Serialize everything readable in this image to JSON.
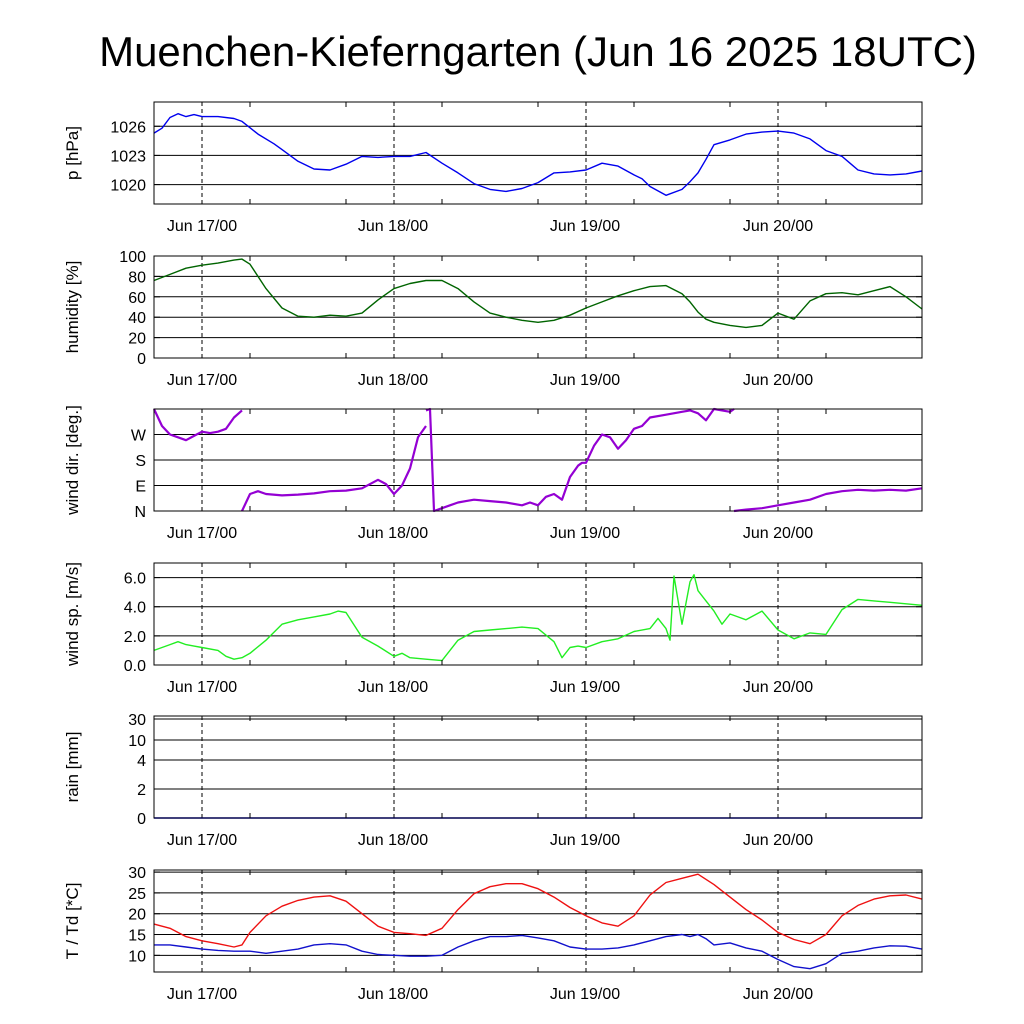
{
  "title": "Muenchen-Kieferngarten (Jun 16 2025 18UTC)",
  "colors": {
    "pressure": "#0000ee",
    "humidity": "#006400",
    "wind_dir": "#9400d3",
    "wind_speed": "#22ee22",
    "temperature": "#ee1111",
    "dewpoint": "#1111cc"
  },
  "chart_data": [
    {
      "type": "line",
      "ylabel": "p [hPa]",
      "x_ticks": [
        "Jun 17/00",
        "Jun 18/00",
        "Jun 19/00",
        "Jun 20/00"
      ],
      "y_ticks": [
        "1026",
        "1023",
        "1020"
      ],
      "y_tick_values": [
        1026,
        1023,
        1020
      ],
      "ylim": [
        1018,
        1028.5
      ],
      "xlim_hours": [
        -6,
        90
      ],
      "grid": true,
      "series": [
        {
          "color_key": "pressure",
          "x": [
            -6,
            -5,
            -4,
            -3,
            -2,
            -1,
            0,
            2,
            4,
            5,
            7,
            9,
            10,
            12,
            14,
            16,
            18,
            20,
            22,
            24,
            26,
            28,
            30,
            32,
            34,
            36,
            38,
            40,
            42,
            44,
            46,
            48,
            50,
            52,
            54,
            55,
            56,
            58,
            60,
            61,
            62,
            63,
            64,
            66,
            68,
            70,
            72,
            74,
            76,
            78,
            80,
            81,
            82,
            84,
            86,
            88,
            90
          ],
          "y": [
            1025.3,
            1025.8,
            1026.9,
            1027.3,
            1027.0,
            1027.2,
            1027.0,
            1027.0,
            1026.8,
            1026.5,
            1025.2,
            1024.2,
            1023.6,
            1022.4,
            1021.6,
            1021.5,
            1022.1,
            1022.9,
            1022.8,
            1022.9,
            1022.9,
            1023.3,
            1022.2,
            1021.2,
            1020.1,
            1019.5,
            1019.3,
            1019.6,
            1020.2,
            1021.2,
            1021.3,
            1021.5,
            1022.2,
            1021.9,
            1021.0,
            1020.6,
            1019.8,
            1018.9,
            1019.5,
            1020.3,
            1021.2,
            1022.6,
            1024.1,
            1024.6,
            1025.2,
            1025.4,
            1025.5,
            1025.3,
            1024.7,
            1023.5,
            1022.9,
            1022.2,
            1021.5,
            1021.1,
            1021.0,
            1021.1,
            1021.4
          ]
        }
      ]
    },
    {
      "type": "line",
      "ylabel": "humidity [%]",
      "x_ticks": [
        "Jun 17/00",
        "Jun 18/00",
        "Jun 19/00",
        "Jun 20/00"
      ],
      "y_ticks": [
        "100",
        "80",
        "60",
        "40",
        "20",
        "0"
      ],
      "y_tick_values": [
        100,
        80,
        60,
        40,
        20,
        0
      ],
      "ylim": [
        0,
        100
      ],
      "xlim_hours": [
        -6,
        90
      ],
      "grid": true,
      "series": [
        {
          "color_key": "humidity",
          "x": [
            -6,
            -4,
            -2,
            0,
            2,
            4,
            5,
            6,
            8,
            10,
            12,
            14,
            16,
            18,
            20,
            22,
            24,
            26,
            28,
            30,
            32,
            34,
            36,
            38,
            40,
            42,
            44,
            46,
            48,
            50,
            52,
            54,
            56,
            58,
            60,
            61,
            62,
            63,
            64,
            66,
            68,
            70,
            72,
            74,
            76,
            78,
            80,
            82,
            84,
            86,
            88,
            90
          ],
          "y": [
            76,
            82,
            88,
            91,
            93,
            96,
            97,
            92,
            68,
            49,
            41,
            40,
            42,
            41,
            44,
            57,
            68,
            73,
            76,
            76,
            68,
            55,
            44,
            40,
            37,
            35,
            37,
            42,
            49,
            55,
            61,
            66,
            70,
            71,
            63,
            55,
            45,
            38,
            35,
            32,
            30,
            32,
            44,
            38,
            56,
            63,
            64,
            62,
            66,
            70,
            60,
            48
          ]
        }
      ]
    },
    {
      "type": "scatter",
      "ylabel": "wind dir. [deg.]",
      "x_ticks": [
        "Jun 17/00",
        "Jun 18/00",
        "Jun 19/00",
        "Jun 20/00"
      ],
      "y_ticks": [
        "W",
        "S",
        "E",
        "N"
      ],
      "y_tick_values": [
        270,
        180,
        90,
        0
      ],
      "ylim": [
        0,
        360
      ],
      "xlim_hours": [
        -6,
        90
      ],
      "grid": true,
      "series": [
        {
          "color_key": "wind_dir",
          "x": [
            -6,
            -5,
            -4,
            -3,
            -2,
            -1,
            0,
            1,
            2,
            3,
            4,
            5
          ],
          "y": [
            360,
            300,
            270,
            260,
            250,
            265,
            280,
            275,
            280,
            290,
            330,
            355
          ]
        },
        {
          "color_key": "wind_dir",
          "x": [
            5,
            6,
            7,
            8,
            10,
            12,
            14,
            16,
            18,
            20,
            22,
            23,
            24,
            25,
            26,
            27,
            28
          ],
          "y": [
            0,
            60,
            70,
            60,
            55,
            58,
            62,
            70,
            72,
            80,
            110,
            95,
            60,
            90,
            150,
            260,
            300
          ]
        },
        {
          "color_key": "wind_dir",
          "x": [
            28,
            28.5,
            29,
            30,
            31,
            32,
            33,
            34,
            36,
            38,
            40,
            41,
            42,
            43,
            44,
            45,
            46,
            47,
            47.5,
            48,
            49,
            50,
            51,
            52,
            53,
            54,
            55,
            56,
            58,
            60,
            61,
            62,
            63,
            64,
            65,
            66,
            66.5
          ],
          "y": [
            355,
            360,
            0,
            10,
            20,
            30,
            35,
            40,
            35,
            30,
            20,
            30,
            20,
            50,
            60,
            40,
            120,
            160,
            170,
            170,
            230,
            270,
            260,
            220,
            250,
            290,
            300,
            330,
            340,
            350,
            355,
            345,
            320,
            360,
            355,
            350,
            360
          ]
        },
        {
          "color_key": "wind_dir",
          "x": [
            66.5,
            68,
            70,
            72,
            74,
            76,
            78,
            80,
            82,
            84,
            86,
            88,
            90
          ],
          "y": [
            0,
            5,
            10,
            20,
            30,
            40,
            60,
            70,
            75,
            72,
            75,
            72,
            80
          ]
        }
      ]
    },
    {
      "type": "line",
      "ylabel": "wind sp. [m/s]",
      "x_ticks": [
        "Jun 17/00",
        "Jun 18/00",
        "Jun 19/00",
        "Jun 20/00"
      ],
      "y_ticks": [
        "6.0",
        "4.0",
        "2.0",
        "0.0"
      ],
      "y_tick_values": [
        6,
        4,
        2,
        0
      ],
      "ylim": [
        0,
        7
      ],
      "xlim_hours": [
        -6,
        90
      ],
      "grid": true,
      "series": [
        {
          "color_key": "wind_speed",
          "x": [
            -6,
            -5,
            -4,
            -3,
            -2,
            -1,
            0,
            2,
            3,
            4,
            5,
            6,
            8,
            10,
            12,
            14,
            16,
            17,
            18,
            20,
            22,
            24,
            25,
            26,
            28,
            30,
            32,
            34,
            36,
            38,
            40,
            42,
            44,
            45,
            46,
            47,
            48,
            50,
            52,
            54,
            56,
            57,
            58,
            58.5,
            59,
            60,
            61,
            61.5,
            62,
            63,
            64,
            65,
            66,
            67,
            68,
            70,
            72,
            74,
            76,
            78,
            80,
            82,
            84,
            86,
            88,
            90
          ],
          "y": [
            1.0,
            1.2,
            1.4,
            1.6,
            1.4,
            1.3,
            1.2,
            1.0,
            0.6,
            0.4,
            0.5,
            0.8,
            1.7,
            2.8,
            3.1,
            3.3,
            3.5,
            3.7,
            3.6,
            1.9,
            1.3,
            0.6,
            0.8,
            0.5,
            0.4,
            0.3,
            1.7,
            2.3,
            2.4,
            2.5,
            2.6,
            2.5,
            1.6,
            0.5,
            1.2,
            1.3,
            1.2,
            1.6,
            1.8,
            2.3,
            2.5,
            3.2,
            2.5,
            1.7,
            6.1,
            2.8,
            5.7,
            6.2,
            5.1,
            4.4,
            3.7,
            2.8,
            3.5,
            3.3,
            3.1,
            3.7,
            2.4,
            1.8,
            2.2,
            2.1,
            3.8,
            4.5,
            4.4,
            4.3,
            4.2,
            4.1
          ]
        }
      ]
    },
    {
      "type": "line",
      "ylabel": "rain [mm]",
      "x_ticks": [
        "Jun 17/00",
        "Jun 18/00",
        "Jun 19/00",
        "Jun 20/00"
      ],
      "y_ticks": [
        "30",
        "10",
        "4",
        "2",
        "0"
      ],
      "y_tick_values": [
        30,
        10,
        4,
        2,
        0
      ],
      "ylim": [
        0,
        30
      ],
      "xlim_hours": [
        -6,
        90
      ],
      "grid": true,
      "series": [
        {
          "color_key": "pressure",
          "x": [
            -6,
            90
          ],
          "y": [
            0,
            0
          ]
        }
      ]
    },
    {
      "type": "line",
      "ylabel": "T / Td [*C]",
      "x_ticks": [
        "Jun 17/00",
        "Jun 18/00",
        "Jun 19/00",
        "Jun 20/00"
      ],
      "y_ticks": [
        "30",
        "25",
        "20",
        "15",
        "10"
      ],
      "y_tick_values": [
        30,
        25,
        20,
        15,
        10
      ],
      "ylim": [
        6,
        30.5
      ],
      "xlim_hours": [
        -6,
        90
      ],
      "grid": true,
      "series": [
        {
          "name": "T",
          "color_key": "temperature",
          "x": [
            -6,
            -4,
            -2,
            0,
            2,
            4,
            5,
            6,
            8,
            10,
            12,
            14,
            16,
            18,
            20,
            22,
            24,
            26,
            28,
            30,
            32,
            34,
            36,
            38,
            40,
            42,
            44,
            46,
            48,
            50,
            52,
            54,
            56,
            58,
            60,
            62,
            64,
            66,
            68,
            70,
            72,
            74,
            76,
            78,
            80,
            82,
            84,
            86,
            88,
            90
          ],
          "y": [
            17.5,
            16.5,
            14.5,
            13.5,
            12.8,
            12.0,
            12.5,
            15.5,
            19.5,
            21.8,
            23.2,
            24.0,
            24.3,
            23.0,
            20.0,
            17.0,
            15.5,
            15.2,
            14.8,
            16.5,
            21.0,
            24.8,
            26.5,
            27.2,
            27.2,
            26.0,
            24.0,
            21.5,
            19.5,
            17.8,
            17.0,
            19.5,
            24.5,
            27.5,
            28.5,
            29.5,
            27.0,
            24.0,
            21.0,
            18.5,
            15.5,
            13.8,
            12.8,
            15.0,
            19.5,
            22.0,
            23.5,
            24.3,
            24.5,
            23.5
          ]
        },
        {
          "name": "Td",
          "color_key": "dewpoint",
          "x": [
            -6,
            -4,
            -2,
            0,
            2,
            4,
            6,
            8,
            10,
            12,
            14,
            16,
            18,
            20,
            22,
            24,
            26,
            28,
            30,
            32,
            34,
            36,
            38,
            40,
            42,
            44,
            46,
            48,
            50,
            52,
            54,
            56,
            58,
            60,
            61,
            62,
            63,
            64,
            66,
            68,
            70,
            72,
            74,
            76,
            78,
            80,
            82,
            84,
            86,
            88,
            90
          ],
          "y": [
            12.5,
            12.5,
            12.0,
            11.5,
            11.2,
            11.0,
            11.0,
            10.5,
            11.0,
            11.5,
            12.5,
            12.8,
            12.5,
            11.0,
            10.2,
            10.0,
            9.8,
            9.8,
            10.0,
            12.0,
            13.5,
            14.5,
            14.5,
            14.8,
            14.2,
            13.5,
            12.0,
            11.5,
            11.5,
            11.8,
            12.5,
            13.5,
            14.5,
            15.0,
            14.5,
            15.0,
            14.0,
            12.5,
            13.0,
            11.8,
            11.0,
            9.0,
            7.3,
            6.8,
            8.0,
            10.5,
            11.0,
            11.8,
            12.3,
            12.2,
            11.5
          ]
        }
      ]
    }
  ]
}
